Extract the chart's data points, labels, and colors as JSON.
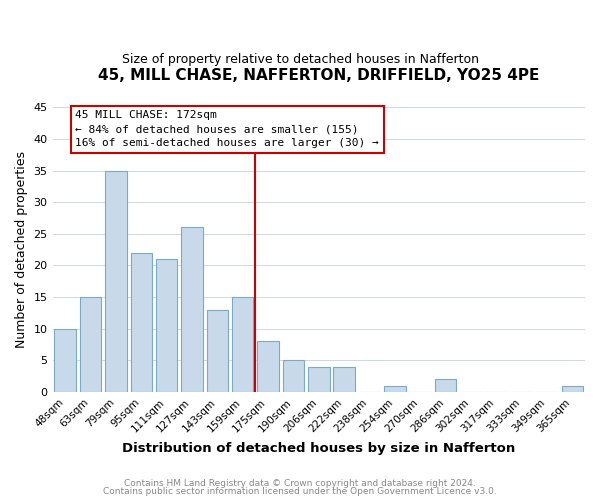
{
  "title": "45, MILL CHASE, NAFFERTON, DRIFFIELD, YO25 4PE",
  "subtitle": "Size of property relative to detached houses in Nafferton",
  "xlabel": "Distribution of detached houses by size in Nafferton",
  "ylabel": "Number of detached properties",
  "bar_color": "#c8daea",
  "bar_edge_color": "#7aaac8",
  "categories": [
    "48sqm",
    "63sqm",
    "79sqm",
    "95sqm",
    "111sqm",
    "127sqm",
    "143sqm",
    "159sqm",
    "175sqm",
    "190sqm",
    "206sqm",
    "222sqm",
    "238sqm",
    "254sqm",
    "270sqm",
    "286sqm",
    "302sqm",
    "317sqm",
    "333sqm",
    "349sqm",
    "365sqm"
  ],
  "values": [
    10,
    15,
    35,
    22,
    21,
    26,
    13,
    15,
    8,
    5,
    4,
    4,
    0,
    1,
    0,
    2,
    0,
    0,
    0,
    0,
    1
  ],
  "ylim": [
    0,
    45
  ],
  "yticks": [
    0,
    5,
    10,
    15,
    20,
    25,
    30,
    35,
    40,
    45
  ],
  "vline_color": "#cc0000",
  "annotation_title": "45 MILL CHASE: 172sqm",
  "annotation_line1": "← 84% of detached houses are smaller (155)",
  "annotation_line2": "16% of semi-detached houses are larger (30) →",
  "annotation_box_edge": "#cc0000",
  "footer_line1": "Contains HM Land Registry data © Crown copyright and database right 2024.",
  "footer_line2": "Contains public sector information licensed under the Open Government Licence v3.0.",
  "background_color": "#ffffff",
  "plot_background_color": "#ffffff",
  "grid_color": "#d0d8e0"
}
